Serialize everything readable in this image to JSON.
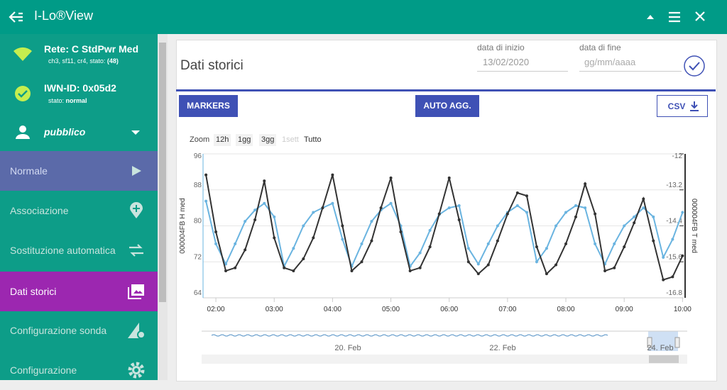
{
  "app": {
    "title": "I-Lo®View"
  },
  "sidebar": {
    "network": {
      "name": "Rete: C StdPwr Med",
      "details": "ch3, sf11, cr4, stato:",
      "status": "(48)"
    },
    "device": {
      "id": "IWN-ID: 0x05d2",
      "state_label": "stato:",
      "state": "normal"
    },
    "user": "pubblico",
    "menu": [
      "Normale",
      "Associazione",
      "Sostituzione automatica",
      "Dati storici",
      "Configurazione sonda",
      "Configurazione"
    ]
  },
  "panel": {
    "title": "Dati storici",
    "start_label": "data di inizio",
    "start_value": "13/02/2020",
    "end_label": "data di fine",
    "end_placeholder": "gg/mm/aaaa",
    "buttons": [
      "MARKERS",
      "AUTO AGG.",
      "CSV"
    ],
    "zoom_label": "Zoom",
    "zoom_options": [
      "12h",
      "1gg",
      "3gg",
      "1sett",
      "Tutto"
    ],
    "navigator_labels": [
      "20. Feb",
      "22. Feb",
      "24. Feb"
    ]
  },
  "chart_data": {
    "type": "line",
    "x": [
      1.83,
      2.0,
      2.17,
      2.33,
      2.5,
      2.67,
      2.83,
      3.0,
      3.17,
      3.33,
      3.5,
      3.67,
      3.83,
      4.0,
      4.17,
      4.33,
      4.5,
      4.67,
      4.83,
      5.0,
      5.17,
      5.33,
      5.5,
      5.67,
      5.83,
      6.0,
      6.17,
      6.33,
      6.5,
      6.67,
      6.83,
      7.0,
      7.17,
      7.33,
      7.5,
      7.67,
      7.83,
      8.0,
      8.17,
      8.33,
      8.5,
      8.67,
      8.83,
      9.0,
      9.17,
      9.33,
      9.5,
      9.67,
      9.83,
      10.0
    ],
    "xlim": [
      1.78,
      10.02
    ],
    "xticks": [
      {
        "value": 2,
        "label": "02:00"
      },
      {
        "value": 3,
        "label": "03:00"
      },
      {
        "value": 4,
        "label": "04:00"
      },
      {
        "value": 5,
        "label": "05:00"
      },
      {
        "value": 6,
        "label": "06:00"
      },
      {
        "value": 7,
        "label": "07:00"
      },
      {
        "value": 8,
        "label": "08:00"
      },
      {
        "value": 9,
        "label": "09:00"
      },
      {
        "value": 10,
        "label": "10:00"
      }
    ],
    "ylim": [
      64,
      96
    ],
    "yticks": [
      64,
      72,
      80,
      88,
      96
    ],
    "y2lim": [
      -16.8,
      -12
    ],
    "y2ticks": [
      -16.8,
      -15.6,
      -14.4,
      -13.2,
      -12
    ],
    "grid": true,
    "series": [
      {
        "name": "000004FB H med",
        "color": "#6ab4e0",
        "values": [
          85.5,
          76,
          71.5,
          76,
          81,
          83.5,
          85,
          82,
          71,
          75,
          80,
          83,
          84,
          85,
          77,
          71,
          76,
          81,
          83.5,
          85,
          80,
          71,
          74,
          79,
          82.5,
          84,
          84.5,
          75,
          71.5,
          76,
          80,
          83,
          84.5,
          83,
          72,
          75,
          80,
          83,
          84.5,
          84,
          76,
          71.5,
          76,
          80,
          82,
          84,
          82,
          73,
          77,
          83
        ]
      },
      {
        "name": "000004FB T med",
        "color": "#333333",
        "axis": "y2",
        "values": [
          -12.7,
          -14.6,
          -15.9,
          -15.8,
          -15.2,
          -14.2,
          -12.9,
          -14.8,
          -15.8,
          -15.9,
          -15.5,
          -14.8,
          -13.8,
          -12.7,
          -14.4,
          -15.9,
          -15.6,
          -14.9,
          -13.8,
          -12.8,
          -14.6,
          -15.9,
          -15.8,
          -15.1,
          -14.0,
          -12.8,
          -14.2,
          -15.6,
          -16.0,
          -15.7,
          -14.9,
          -14.0,
          -13.3,
          -13.4,
          -15.1,
          -16.0,
          -15.7,
          -15.0,
          -14.1,
          -13.0,
          -14.0,
          -15.9,
          -15.8,
          -15.1,
          -14.3,
          -13.5,
          -14.9,
          -16.2,
          -16.1,
          -15.4
        ]
      }
    ]
  }
}
